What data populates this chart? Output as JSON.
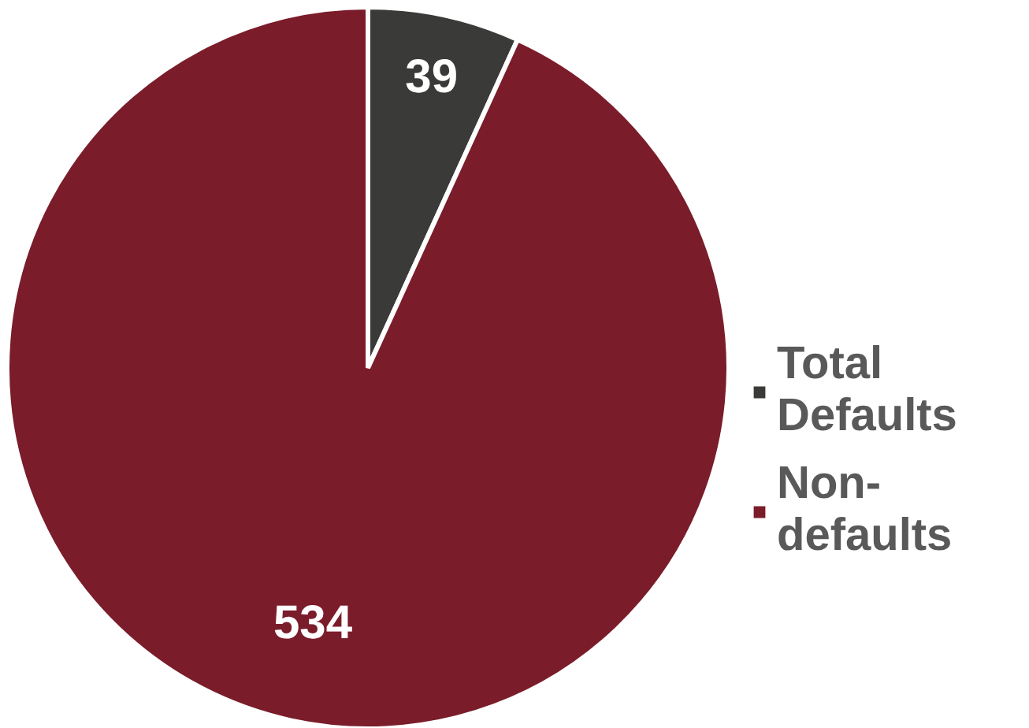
{
  "chart_data": {
    "type": "pie",
    "categories": [
      "Total Defaults",
      "Non-defaults"
    ],
    "values": [
      39,
      534
    ],
    "colors": [
      "#3a3a38",
      "#7b1c2a"
    ],
    "data_labels": true,
    "legend": "right"
  }
}
